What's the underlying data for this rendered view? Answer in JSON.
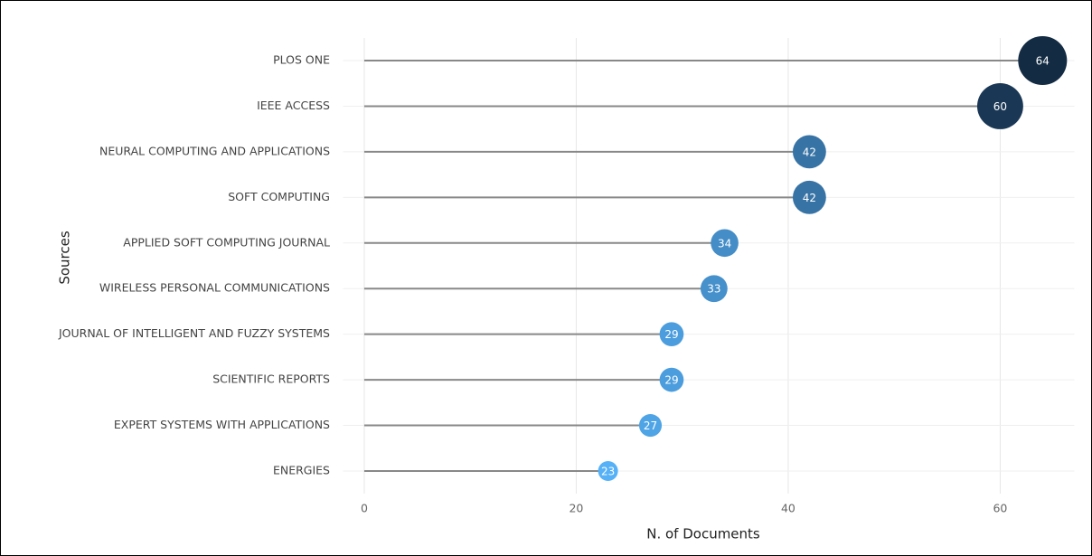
{
  "chart_data": {
    "type": "lollipop",
    "xlabel": "N. of Documents",
    "ylabel": "Sources",
    "categories": [
      "PLOS ONE",
      "IEEE ACCESS",
      "NEURAL COMPUTING AND APPLICATIONS",
      "SOFT COMPUTING",
      "APPLIED SOFT COMPUTING JOURNAL",
      "WIRELESS PERSONAL COMMUNICATIONS",
      "JOURNAL OF INTELLIGENT AND FUZZY SYSTEMS",
      "SCIENTIFIC REPORTS",
      "EXPERT SYSTEMS WITH APPLICATIONS",
      "ENERGIES"
    ],
    "values": [
      64,
      60,
      42,
      42,
      34,
      33,
      29,
      29,
      27,
      23
    ],
    "color_low": "#56b1f7",
    "color_high": "#132b43",
    "stem_color": "#888888",
    "xlim": [
      -2,
      67
    ],
    "xticks": [
      0,
      20,
      40,
      60
    ],
    "grid": true
  }
}
